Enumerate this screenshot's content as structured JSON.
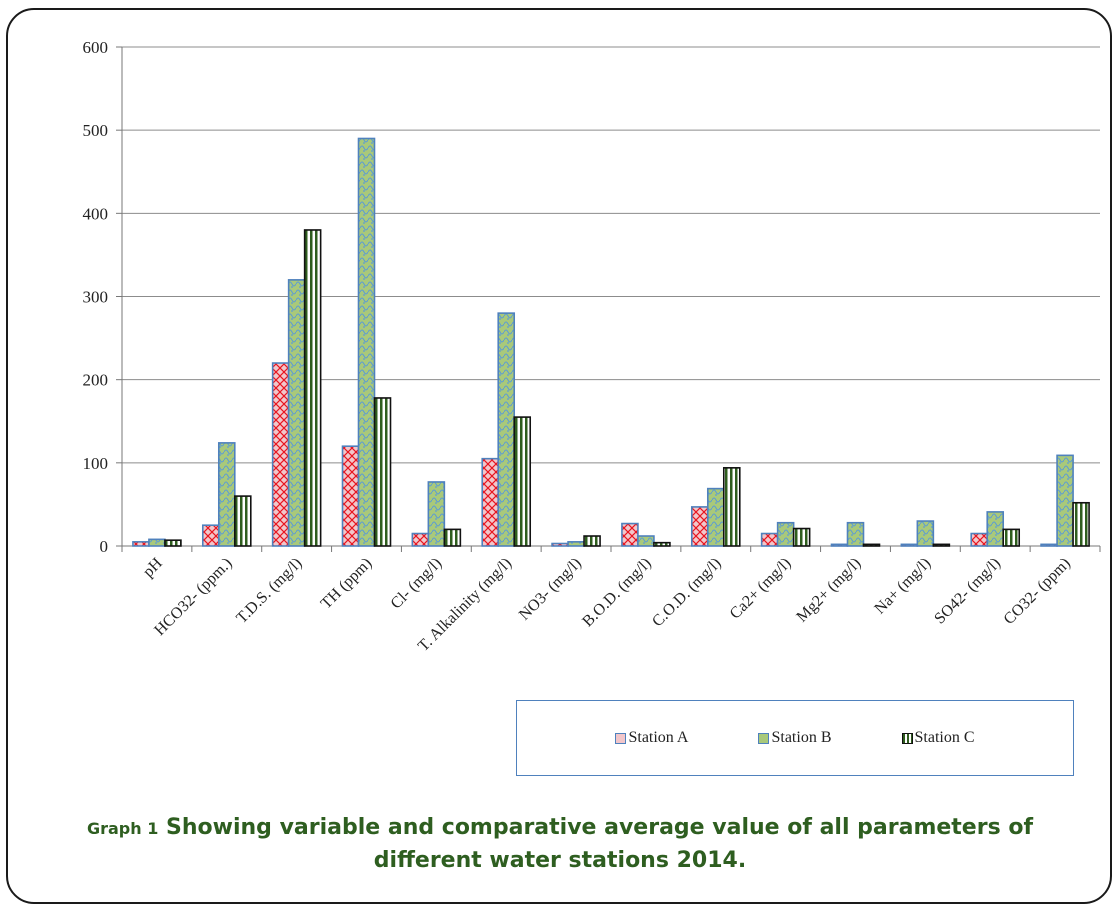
{
  "chart_data": {
    "type": "bar",
    "categories": [
      "pH",
      "HCO32- (ppm.)",
      "T.D.S. (mg/l)",
      "TH (ppm)",
      "Cl- (mg/l)",
      "T. Alkalinity (mg/l)",
      "NO3- (mg/l)",
      "B.O.D. (mg/l)",
      "C.O.D. (mg/l)",
      "Ca2+ (mg/l)",
      "Mg2+ (mg/l)",
      "Na+ (mg/l)",
      "SO42- (mg/l)",
      "CO32- (ppm)"
    ],
    "series": [
      {
        "name": "Station A",
        "values": [
          5,
          25,
          220,
          120,
          15,
          105,
          3,
          27,
          47,
          15,
          2,
          2,
          15,
          2
        ],
        "color": "#f4a6ad",
        "pattern": "cross-red"
      },
      {
        "name": "Station B",
        "values": [
          8,
          124,
          320,
          490,
          77,
          280,
          5,
          12,
          69,
          28,
          28,
          30,
          41,
          109
        ],
        "color": "#9bbb59",
        "pattern": "dots-blue"
      },
      {
        "name": "Station C",
        "values": [
          7,
          60,
          380,
          178,
          20,
          155,
          12,
          4,
          94,
          21,
          2,
          2,
          20,
          52
        ],
        "color": "#3a6a26",
        "pattern": "vertical-stripes"
      }
    ],
    "yticks": [
      0,
      100,
      200,
      300,
      400,
      500,
      600
    ],
    "ylim": [
      0,
      600
    ],
    "grid": true,
    "legend_position": "bottom-right"
  },
  "caption": {
    "prefix": "Graph 1",
    "text": "Showing variable and comparative average value of all parameters of different water stations 2014."
  }
}
